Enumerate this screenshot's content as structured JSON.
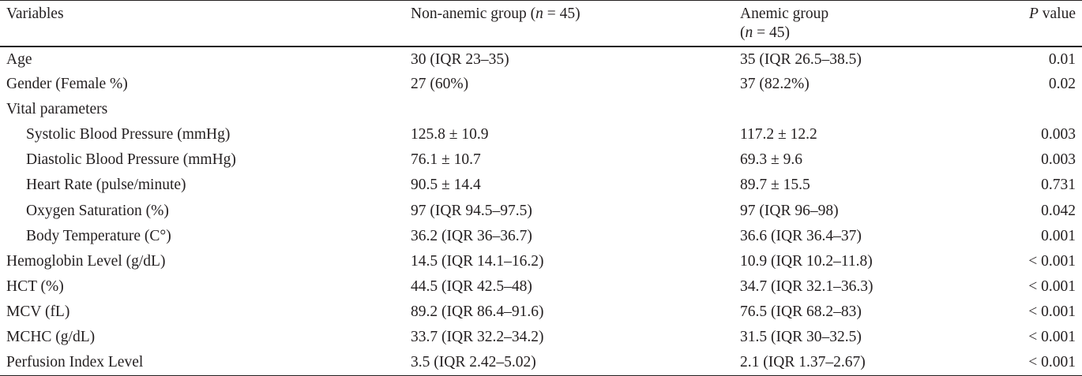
{
  "table": {
    "headers": {
      "variables": "Variables",
      "non_anemic_prefix": "Non-anemic group (",
      "non_anemic_n": "n",
      "non_anemic_suffix": " = 45)",
      "anemic_line1": "Anemic group",
      "anemic_prefix": "(",
      "anemic_n": "n",
      "anemic_suffix": " = 45)",
      "p_value_p": "P",
      "p_value_suffix": " value"
    },
    "rows": [
      {
        "variable": "Age",
        "non_anemic": "30 (IQR 23–35)",
        "anemic": "35 (IQR 26.5–38.5)",
        "p": "0.01"
      },
      {
        "variable": "Gender (Female %)",
        "non_anemic": "27 (60%)",
        "anemic": "37 (82.2%)",
        "p": "0.02"
      },
      {
        "variable": "Vital parameters",
        "non_anemic": "",
        "anemic": "",
        "p": ""
      },
      {
        "variable": "Systolic Blood Pressure (mmHg)",
        "non_anemic": "125.8 ± 10.9",
        "anemic": "117.2 ± 12.2",
        "p": "0.003"
      },
      {
        "variable": "Diastolic Blood Pressure (mmHg)",
        "non_anemic": "76.1 ± 10.7",
        "anemic": "69.3 ± 9.6",
        "p": "0.003"
      },
      {
        "variable": "Heart Rate (pulse/minute)",
        "non_anemic": "90.5 ± 14.4",
        "anemic": "89.7 ± 15.5",
        "p": "0.731"
      },
      {
        "variable": "Oxygen Saturation (%)",
        "non_anemic": "97 (IQR 94.5–97.5)",
        "anemic": "97 (IQR 96–98)",
        "p": "0.042"
      },
      {
        "variable": "Body Temperature (C°)",
        "non_anemic": "36.2 (IQR 36–36.7)",
        "anemic": "36.6 (IQR 36.4–37)",
        "p": "0.001"
      },
      {
        "variable": "Hemoglobin Level (g/dL)",
        "non_anemic": "14.5 (IQR 14.1–16.2)",
        "anemic": "10.9 (IQR 10.2–11.8)",
        "p": "< 0.001"
      },
      {
        "variable": "HCT (%)",
        "non_anemic": "44.5 (IQR 42.5–48)",
        "anemic": "34.7 (IQR 32.1–36.3)",
        "p": "< 0.001"
      },
      {
        "variable": "MCV (fL)",
        "non_anemic": "89.2 (IQR 86.4–91.6)",
        "anemic": "76.5 (IQR 68.2–83)",
        "p": "< 0.001"
      },
      {
        "variable": "MCHC (g/dL)",
        "non_anemic": "33.7 (IQR 32.2–34.2)",
        "anemic": "31.5 (IQR 30–32.5)",
        "p": "< 0.001"
      },
      {
        "variable": "Perfusion Index Level",
        "non_anemic": "3.5 (IQR 2.42–5.02)",
        "anemic": "2.1 (IQR 1.37–2.67)",
        "p": "< 0.001"
      }
    ]
  }
}
